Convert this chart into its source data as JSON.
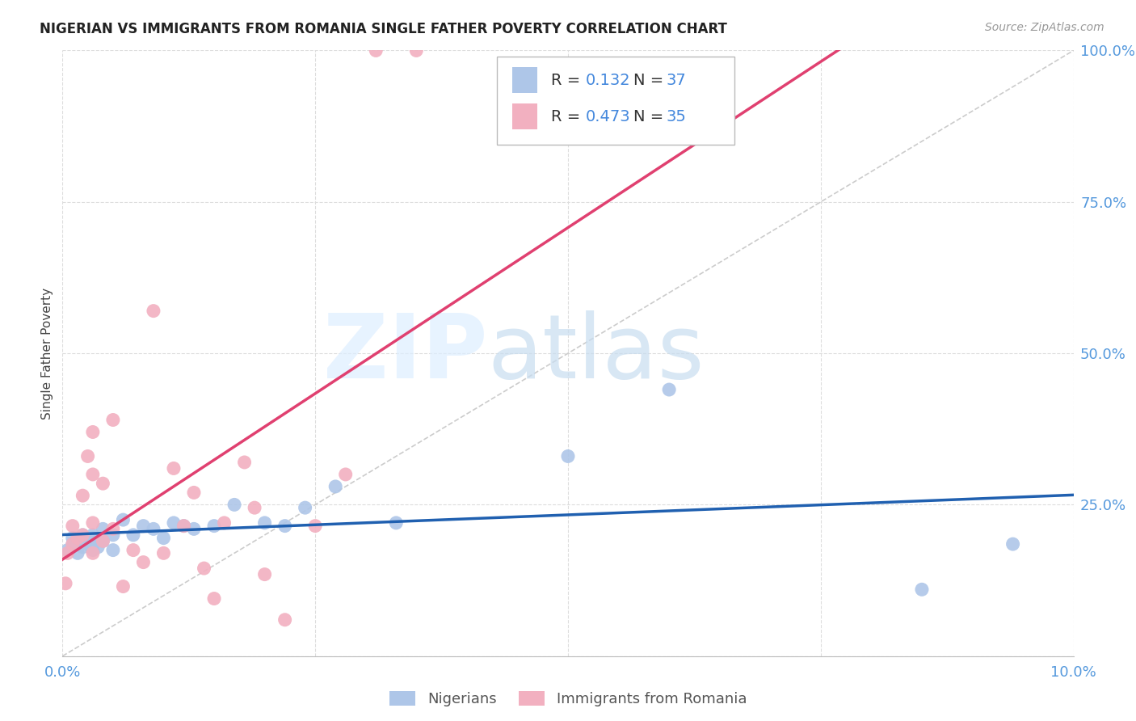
{
  "title": "NIGERIAN VS IMMIGRANTS FROM ROMANIA SINGLE FATHER POVERTY CORRELATION CHART",
  "source": "Source: ZipAtlas.com",
  "ylabel": "Single Father Poverty",
  "xlim": [
    0,
    0.1
  ],
  "ylim": [
    0,
    1.0
  ],
  "grid_color": "#dddddd",
  "background_color": "#ffffff",
  "nigerians_color": "#aec6e8",
  "romania_color": "#f2b0c0",
  "nigerians_line_color": "#2060b0",
  "romania_line_color": "#e04070",
  "diag_line_color": "#cccccc",
  "R_nigeria": 0.132,
  "N_nigeria": 37,
  "R_romania": 0.473,
  "N_romania": 35,
  "nigerians_x": [
    0.0005,
    0.001,
    0.001,
    0.0015,
    0.0015,
    0.002,
    0.002,
    0.002,
    0.0025,
    0.003,
    0.003,
    0.003,
    0.003,
    0.0035,
    0.004,
    0.004,
    0.005,
    0.005,
    0.006,
    0.007,
    0.008,
    0.009,
    0.01,
    0.011,
    0.012,
    0.013,
    0.015,
    0.017,
    0.02,
    0.022,
    0.024,
    0.027,
    0.033,
    0.05,
    0.06,
    0.085,
    0.094
  ],
  "nigerians_y": [
    0.175,
    0.185,
    0.195,
    0.17,
    0.19,
    0.18,
    0.2,
    0.195,
    0.185,
    0.175,
    0.19,
    0.195,
    0.2,
    0.18,
    0.19,
    0.21,
    0.2,
    0.175,
    0.225,
    0.2,
    0.215,
    0.21,
    0.195,
    0.22,
    0.215,
    0.21,
    0.215,
    0.25,
    0.22,
    0.215,
    0.245,
    0.28,
    0.22,
    0.33,
    0.44,
    0.11,
    0.185
  ],
  "romania_x": [
    0.0003,
    0.0005,
    0.001,
    0.001,
    0.0015,
    0.002,
    0.002,
    0.0025,
    0.003,
    0.003,
    0.003,
    0.003,
    0.004,
    0.004,
    0.005,
    0.005,
    0.006,
    0.007,
    0.008,
    0.009,
    0.01,
    0.011,
    0.012,
    0.013,
    0.014,
    0.015,
    0.016,
    0.018,
    0.019,
    0.02,
    0.022,
    0.025,
    0.028,
    0.031,
    0.035
  ],
  "romania_y": [
    0.12,
    0.17,
    0.185,
    0.215,
    0.195,
    0.2,
    0.265,
    0.33,
    0.17,
    0.22,
    0.3,
    0.37,
    0.19,
    0.285,
    0.21,
    0.39,
    0.115,
    0.175,
    0.155,
    0.57,
    0.17,
    0.31,
    0.215,
    0.27,
    0.145,
    0.095,
    0.22,
    0.32,
    0.245,
    0.135,
    0.06,
    0.215,
    0.3,
    1.0,
    1.0
  ]
}
